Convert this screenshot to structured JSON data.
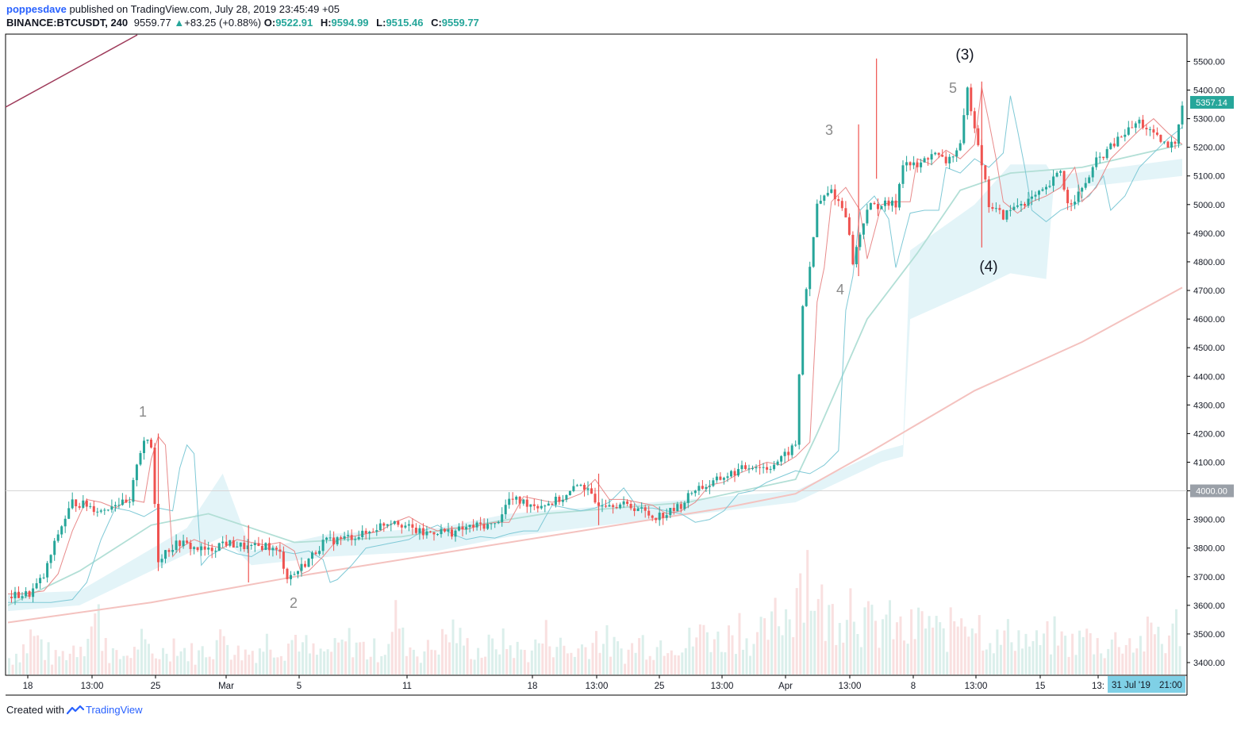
{
  "header": {
    "author": "poppesdave",
    "published_text": "published on TradingView.com, July 28, 2019 23:45:49 +05",
    "symbol": "BINANCE:BTCUSDT, 240",
    "last": "9559.77",
    "change": "+83.25 (+0.88%)",
    "o_label": "O:",
    "o_value": "9522.91",
    "h_label": "H:",
    "h_value": "9594.99",
    "l_label": "L:",
    "l_value": "9515.46",
    "c_label": "C:",
    "c_value": "9559.77"
  },
  "footer": {
    "created_with": "Created with",
    "brand": "TradingView"
  },
  "colors": {
    "up": "#26a69a",
    "down": "#ef5350",
    "ma_long": "#f4c2bf",
    "ma_mid": "#b2dfd6",
    "cloud": "#d9f0f5",
    "trendline": "#9e3a5a",
    "wave_label": "#8a8a8a"
  },
  "chart_data": {
    "type": "candlestick",
    "symbol": "BINANCE:BTCUSDT",
    "interval": "240",
    "y_ticks": [
      "5600.00",
      "5500.00",
      "5400.00",
      "5300.00",
      "5200.00",
      "5100.00",
      "5000.00",
      "4900.00",
      "4800.00",
      "4700.00",
      "4600.00",
      "4500.00",
      "4400.00",
      "4300.00",
      "4200.00",
      "4100.00",
      "4000.00",
      "3900.00",
      "3800.00",
      "3700.00",
      "3600.00",
      "3500.00",
      "3400.00"
    ],
    "ylim": [
      3360,
      5630
    ],
    "x_ticks": [
      "18",
      "13:00",
      "25",
      "Mar",
      "5",
      "11",
      "18",
      "13:00",
      "25",
      "13:00",
      "Apr",
      "13:00",
      "8",
      "13:00",
      "15",
      "13:"
    ],
    "price_marker": "5357.14",
    "level_marker": "4000.00",
    "crosshair_date": "31 Jul '19",
    "crosshair_time": "21:00",
    "wave_labels": [
      "1",
      "2",
      "3",
      "4",
      "5",
      "(3)",
      "(4)"
    ],
    "price_path": [
      [
        0,
        3630
      ],
      [
        3,
        3640
      ],
      [
        5,
        3700
      ],
      [
        7,
        3850
      ],
      [
        9,
        3960
      ],
      [
        11,
        3950
      ],
      [
        13,
        3930
      ],
      [
        15,
        3960
      ],
      [
        17,
        3950
      ],
      [
        18,
        4100
      ],
      [
        19,
        4180
      ],
      [
        20,
        4150
      ],
      [
        21,
        3760
      ],
      [
        22,
        3790
      ],
      [
        24,
        3820
      ],
      [
        26,
        3800
      ],
      [
        28,
        3790
      ],
      [
        30,
        3820
      ],
      [
        32,
        3810
      ],
      [
        34,
        3800
      ],
      [
        36,
        3810
      ],
      [
        38,
        3780
      ],
      [
        39,
        3700
      ],
      [
        40,
        3710
      ],
      [
        42,
        3760
      ],
      [
        44,
        3820
      ],
      [
        46,
        3830
      ],
      [
        48,
        3840
      ],
      [
        50,
        3850
      ],
      [
        52,
        3880
      ],
      [
        54,
        3900
      ],
      [
        56,
        3870
      ],
      [
        58,
        3850
      ],
      [
        60,
        3860
      ],
      [
        62,
        3855
      ],
      [
        64,
        3870
      ],
      [
        66,
        3880
      ],
      [
        68,
        3880
      ],
      [
        70,
        3970
      ],
      [
        72,
        3960
      ],
      [
        74,
        3950
      ],
      [
        76,
        3960
      ],
      [
        78,
        3980
      ],
      [
        80,
        4030
      ],
      [
        82,
        3960
      ],
      [
        84,
        3960
      ],
      [
        86,
        3950
      ],
      [
        88,
        3940
      ],
      [
        90,
        3910
      ],
      [
        92,
        3920
      ],
      [
        94,
        3950
      ],
      [
        96,
        4010
      ],
      [
        98,
        4020
      ],
      [
        100,
        4050
      ],
      [
        102,
        4070
      ],
      [
        104,
        4090
      ],
      [
        106,
        4080
      ],
      [
        108,
        4110
      ],
      [
        110,
        4160
      ],
      [
        111,
        4650
      ],
      [
        112,
        4770
      ],
      [
        113,
        5000
      ],
      [
        115,
        5050
      ],
      [
        117,
        4970
      ],
      [
        118,
        4800
      ],
      [
        120,
        4990
      ],
      [
        122,
        5000
      ],
      [
        124,
        5000
      ],
      [
        125,
        5150
      ],
      [
        127,
        5130
      ],
      [
        129,
        5180
      ],
      [
        131,
        5150
      ],
      [
        133,
        5200
      ],
      [
        134,
        5400
      ],
      [
        135,
        5280
      ],
      [
        136,
        5150
      ],
      [
        137,
        5000
      ],
      [
        139,
        4960
      ],
      [
        141,
        5000
      ],
      [
        143,
        5020
      ],
      [
        145,
        5050
      ],
      [
        147,
        5120
      ],
      [
        148,
        5000
      ],
      [
        150,
        5050
      ],
      [
        152,
        5150
      ],
      [
        154,
        5200
      ],
      [
        156,
        5250
      ],
      [
        158,
        5290
      ],
      [
        160,
        5240
      ],
      [
        162,
        5200
      ],
      [
        163,
        5220
      ],
      [
        164,
        5357
      ]
    ],
    "ma_long_path": [
      [
        0,
        3540
      ],
      [
        20,
        3610
      ],
      [
        40,
        3700
      ],
      [
        60,
        3780
      ],
      [
        80,
        3860
      ],
      [
        100,
        3940
      ],
      [
        110,
        3990
      ],
      [
        120,
        4130
      ],
      [
        135,
        4350
      ],
      [
        150,
        4520
      ],
      [
        164,
        4710
      ]
    ],
    "ma_mid_path": [
      [
        0,
        3600
      ],
      [
        10,
        3720
      ],
      [
        20,
        3880
      ],
      [
        28,
        3920
      ],
      [
        40,
        3820
      ],
      [
        55,
        3840
      ],
      [
        75,
        3920
      ],
      [
        95,
        3960
      ],
      [
        110,
        4040
      ],
      [
        113,
        4200
      ],
      [
        120,
        4600
      ],
      [
        127,
        4830
      ],
      [
        133,
        5050
      ],
      [
        140,
        5110
      ],
      [
        150,
        5130
      ],
      [
        164,
        5210
      ]
    ],
    "cloud_top": [
      [
        0,
        3640
      ],
      [
        10,
        3650
      ],
      [
        25,
        3870
      ],
      [
        30,
        4060
      ],
      [
        34,
        3790
      ],
      [
        45,
        3850
      ],
      [
        60,
        3870
      ],
      [
        70,
        3920
      ],
      [
        90,
        3960
      ],
      [
        110,
        4000
      ],
      [
        122,
        4140
      ],
      [
        125,
        4160
      ],
      [
        126,
        4840
      ],
      [
        135,
        5000
      ],
      [
        140,
        5140
      ],
      [
        145,
        5140
      ],
      [
        146,
        5100
      ],
      [
        164,
        5160
      ]
    ],
    "cloud_bottom": [
      [
        0,
        3580
      ],
      [
        10,
        3600
      ],
      [
        25,
        3780
      ],
      [
        30,
        3840
      ],
      [
        34,
        3740
      ],
      [
        45,
        3770
      ],
      [
        60,
        3790
      ],
      [
        70,
        3840
      ],
      [
        90,
        3900
      ],
      [
        110,
        3960
      ],
      [
        122,
        4100
      ],
      [
        125,
        4120
      ],
      [
        126,
        4600
      ],
      [
        135,
        4700
      ],
      [
        140,
        4760
      ],
      [
        145,
        4740
      ],
      [
        146,
        5050
      ],
      [
        164,
        5100
      ]
    ],
    "volume_profile": [
      0.15,
      0.2,
      0.25,
      0.35,
      0.3,
      0.2,
      0.15,
      0.18,
      0.2,
      0.25,
      0.3,
      0.45,
      0.5,
      0.35,
      0.2,
      0.15,
      0.18,
      0.2,
      0.3,
      0.22,
      0.18,
      0.2,
      0.25,
      0.3,
      0.22,
      0.2,
      0.18,
      0.22,
      0.25,
      0.3,
      0.35,
      0.25,
      0.2,
      0.2,
      0.22,
      0.25,
      0.3,
      0.28,
      0.25,
      0.3,
      0.35,
      0.25,
      0.2,
      0.18,
      0.2,
      0.22,
      0.25,
      0.3,
      0.3,
      0.25,
      0.2,
      0.22,
      0.25,
      0.35,
      0.5,
      0.3,
      0.25,
      0.2,
      0.22,
      0.25,
      0.3,
      0.35,
      0.4,
      0.3,
      0.25,
      0.22,
      0.2,
      0.25,
      0.3,
      0.28,
      0.25,
      0.22,
      0.2,
      0.25,
      0.3,
      0.35,
      0.3,
      0.25,
      0.2,
      0.22,
      0.25,
      0.3,
      0.35,
      0.3,
      0.25,
      0.22,
      0.2,
      0.25,
      0.3,
      0.28,
      0.25,
      0.3,
      0.35,
      0.3,
      0.25,
      0.3,
      0.35,
      0.4,
      0.35,
      0.3,
      0.35,
      0.4,
      0.45,
      0.35,
      0.3,
      0.35,
      0.4,
      0.5,
      0.55,
      0.6,
      0.9,
      1.0,
      0.8,
      0.6,
      0.5,
      0.55,
      0.6,
      0.7,
      0.65,
      0.5,
      0.45,
      0.4,
      0.5,
      0.45,
      0.4,
      0.35,
      0.4,
      0.45,
      0.5,
      0.4,
      0.35,
      0.4,
      0.5,
      0.6,
      0.55,
      0.45,
      0.4,
      0.35,
      0.3,
      0.35,
      0.4,
      0.35,
      0.3,
      0.28,
      0.3,
      0.32,
      0.35,
      0.3,
      0.28,
      0.3,
      0.35,
      0.3,
      0.28,
      0.25,
      0.3,
      0.32,
      0.3,
      0.28,
      0.3,
      0.35,
      0.4,
      0.3,
      0.35,
      0.45
    ]
  }
}
